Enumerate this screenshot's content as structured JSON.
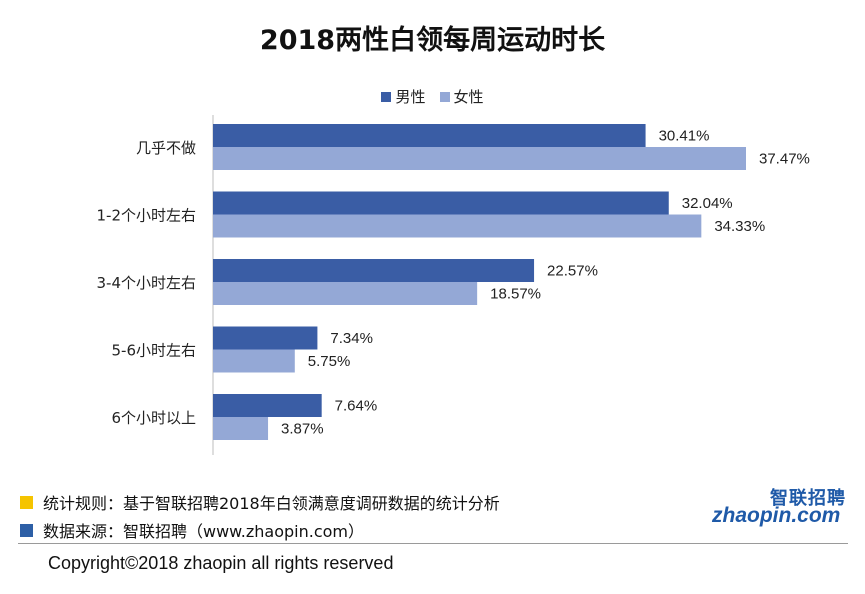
{
  "colors": {
    "male": "#3a5da5",
    "female": "#94a8d6",
    "note1": "#f5c400",
    "note2": "#2d5fa6",
    "logo": "#1f5aa8"
  },
  "chart_data": {
    "type": "bar",
    "orientation": "horizontal",
    "title": "2018两性白领每周运动时长",
    "categories": [
      "几乎不做",
      "1-2个小时左右",
      "3-4个小时左右",
      "5-6小时左右",
      "6个小时以上"
    ],
    "series": [
      {
        "name": "男性",
        "values": [
          30.41,
          32.04,
          22.57,
          7.34,
          7.64
        ],
        "labels": [
          "30.41%",
          "32.04%",
          "22.57%",
          "7.34%",
          "7.64%"
        ]
      },
      {
        "name": "女性",
        "values": [
          37.47,
          34.33,
          18.57,
          5.75,
          3.87
        ],
        "labels": [
          "37.47%",
          "34.33%",
          "18.57%",
          "5.75%",
          "3.87%"
        ]
      }
    ],
    "xlim": [
      0,
      40
    ],
    "legend_position": "top",
    "grid": false
  },
  "footer": {
    "note1": "统计规则：基于智联招聘2018年白领满意度调研数据的统计分析",
    "note2": "数据来源：智联招聘（www.zhaopin.com）",
    "copyright": "Copyright©2018 zhaopin all rights reserved"
  },
  "logo": {
    "cn": "智联招聘",
    "en": "zhaopin.com"
  }
}
